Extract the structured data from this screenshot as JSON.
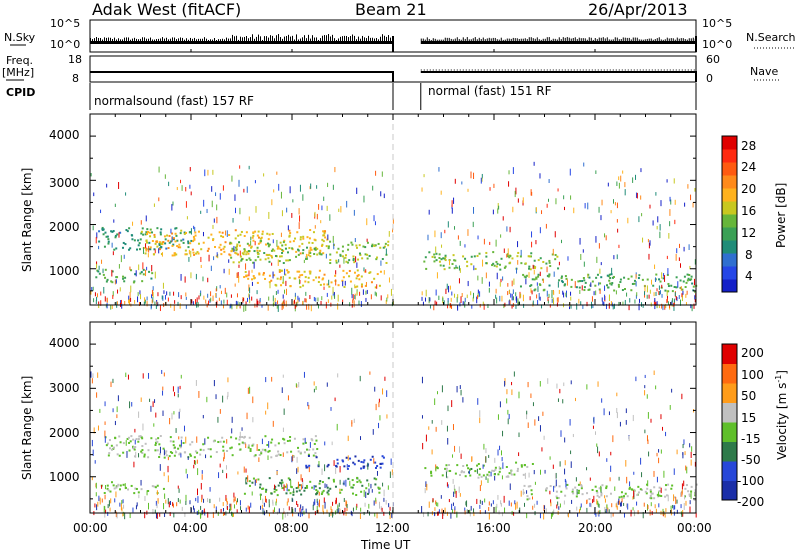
{
  "header": {
    "station": "Adak West (fitACF)",
    "beam": "Beam 21",
    "date": "26/Apr/2013"
  },
  "left_labels": {
    "nsky": "N.Sky",
    "freq": "Freq.",
    "freq_unit": "[MHz]",
    "cpid": "CPID"
  },
  "right_labels": {
    "nsearch": "N.Search",
    "nave": "Nave"
  },
  "noise_axis": {
    "left_top": "10^5",
    "left_bottom": "10^0",
    "right_top": "10^5",
    "right_bottom": "10^0"
  },
  "freq_axis": {
    "left_top": "18",
    "left_bottom": "8",
    "right_top": "60",
    "right_bottom": "0"
  },
  "cpid_segments": [
    {
      "label": "normalsound (fast) 157 RF",
      "start_hour": 0,
      "end_hour": 12
    },
    {
      "label": "normal (fast) 151 RF",
      "start_hour": 13.1,
      "end_hour": 24
    }
  ],
  "power_panel": {
    "ylabel": "Slant Range [km]",
    "yticks": [
      "4000",
      "3000",
      "2000",
      "1000"
    ],
    "colorbar_label": "Power [dB]",
    "colorbar_ticks": [
      "28",
      "24",
      "20",
      "16",
      "12",
      "8",
      "4"
    ]
  },
  "velocity_panel": {
    "ylabel": "Slant Range [km]",
    "yticks": [
      "4000",
      "3000",
      "2000",
      "1000"
    ],
    "colorbar_label": "Velocity [m s",
    "colorbar_sup": "-1",
    "colorbar_label_end": "]",
    "colorbar_ticks": [
      "200",
      "100",
      "50",
      "15",
      "-15",
      "-50",
      "-100",
      "-200"
    ]
  },
  "xaxis": {
    "ticks": [
      "00:00",
      "04:00",
      "08:00",
      "12:00",
      "16:00",
      "20:00",
      "00:00"
    ],
    "label": "Time UT"
  },
  "chart_data": [
    {
      "type": "heatmap",
      "quantity": "Power [dB]",
      "x_range_hours": [
        0,
        24
      ],
      "y_range_km": [
        180,
        4500
      ],
      "data_gap_hours": [
        12.0,
        13.1
      ],
      "colorbar": [
        "#1420c8",
        "#2546e6",
        "#2f6fd0",
        "#1f8c78",
        "#3aa055",
        "#66b63a",
        "#c8c820",
        "#ffb21e",
        "#ff8a1a",
        "#ff5a10",
        "#ff2a10",
        "#e00000"
      ],
      "colorbar_range": [
        0,
        30
      ],
      "echo_bands": [
        {
          "t0": 0.3,
          "t1": 4.0,
          "r0": 1450,
          "r1": 1950,
          "level": 10
        },
        {
          "t0": 2.0,
          "t1": 9.5,
          "r0": 1300,
          "r1": 1900,
          "level": 18
        },
        {
          "t0": 5.5,
          "t1": 11.8,
          "r0": 1150,
          "r1": 1650,
          "level": 14
        },
        {
          "t0": 0.2,
          "t1": 2.5,
          "r0": 700,
          "r1": 1000,
          "level": 12
        },
        {
          "t0": 6.0,
          "t1": 11.5,
          "r0": 600,
          "r1": 1000,
          "level": 18
        },
        {
          "t0": 13.2,
          "t1": 18.5,
          "r0": 1000,
          "r1": 1400,
          "level": 14
        },
        {
          "t0": 17.0,
          "t1": 24.0,
          "r0": 500,
          "r1": 900,
          "level": 12
        }
      ]
    },
    {
      "type": "heatmap",
      "quantity": "Velocity [m/s]",
      "x_range_hours": [
        0,
        24
      ],
      "y_range_km": [
        180,
        4500
      ],
      "data_gap_hours": [
        12.0,
        13.1
      ],
      "colorbar": [
        "#1a2ea8",
        "#2747d8",
        "#2e7a4a",
        "#5fbf2a",
        "#c0c0c0",
        "#ff9c1a",
        "#ff6a10",
        "#e00000"
      ],
      "colorbar_range": [
        -250,
        250
      ],
      "echo_bands": [
        {
          "t0": 0.5,
          "t1": 9.0,
          "r0": 1450,
          "r1": 1950,
          "level": 0
        },
        {
          "t0": 8.5,
          "t1": 11.8,
          "r0": 1200,
          "r1": 1500,
          "level": -180
        },
        {
          "t0": 0.3,
          "t1": 3.0,
          "r0": 650,
          "r1": 900,
          "level": 0
        },
        {
          "t0": 6.0,
          "t1": 11.5,
          "r0": 600,
          "r1": 1000,
          "level": -60
        },
        {
          "t0": 13.2,
          "t1": 17.5,
          "r0": 1000,
          "r1": 1350,
          "level": -20
        },
        {
          "t0": 17.0,
          "t1": 24.0,
          "r0": 500,
          "r1": 850,
          "level": 0
        }
      ]
    }
  ]
}
